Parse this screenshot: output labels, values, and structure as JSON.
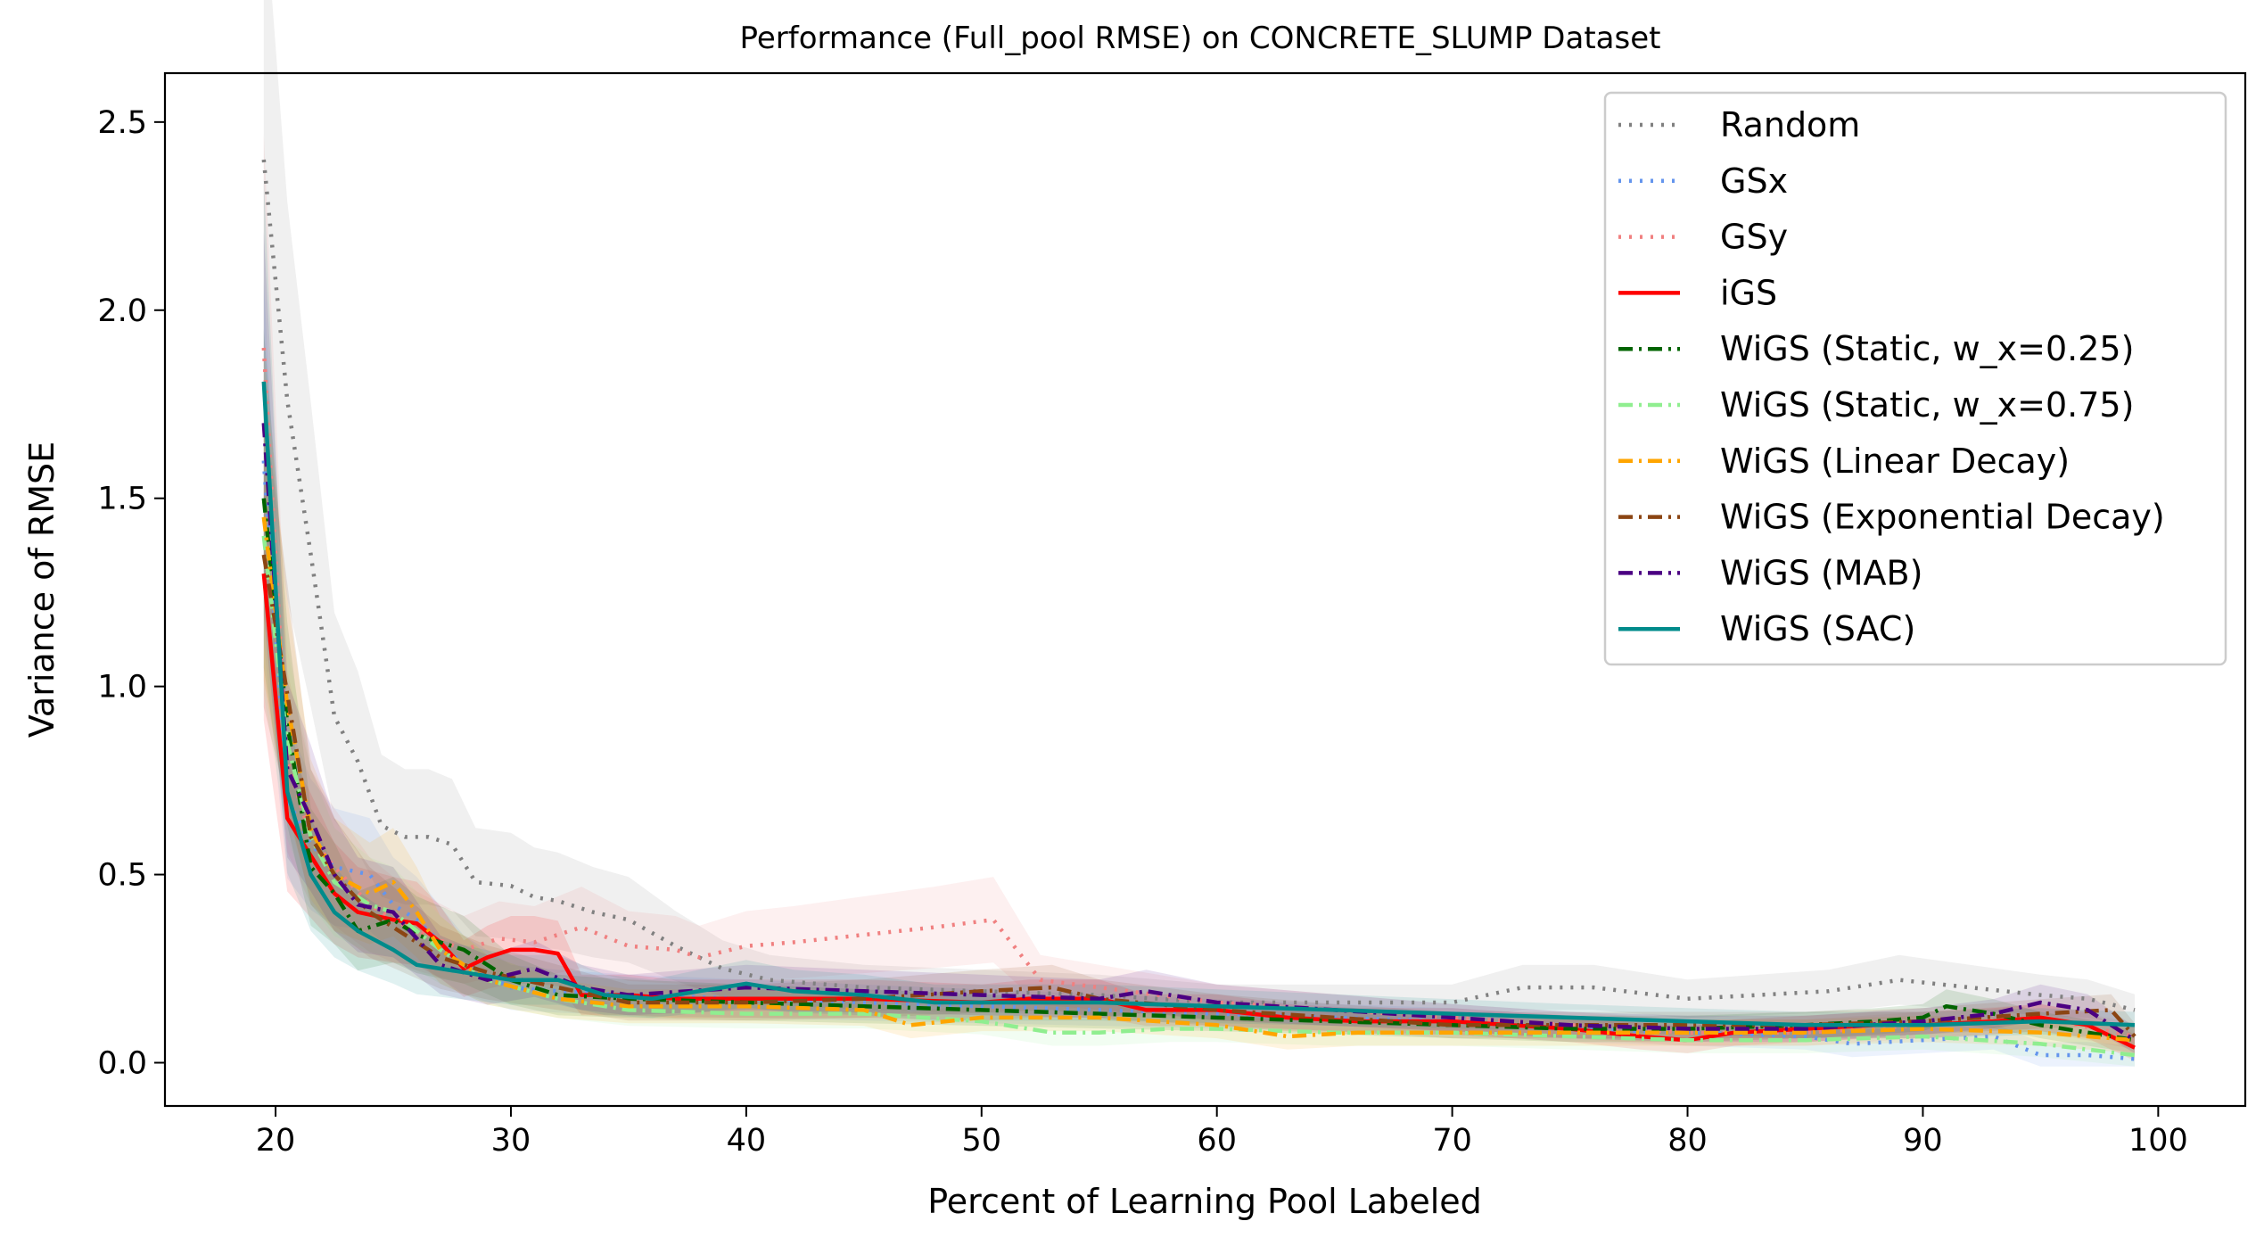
{
  "chart_data": {
    "type": "line",
    "title": "Performance (Full_pool RMSE) on CONCRETE_SLUMP Dataset",
    "xlabel": "Percent of Learning Pool Labeled",
    "ylabel": "Variance of RMSE",
    "xlim": [
      15.3,
      103.7
    ],
    "ylim": [
      -0.115,
      2.63
    ],
    "xticks": [
      20,
      30,
      40,
      50,
      60,
      70,
      80,
      90,
      100
    ],
    "yticks": [
      0.0,
      0.5,
      1.0,
      1.5,
      2.0,
      2.5
    ],
    "xtick_labels": [
      "20",
      "30",
      "40",
      "50",
      "60",
      "70",
      "80",
      "90",
      "100"
    ],
    "ytick_labels": [
      "0.0",
      "0.5",
      "1.0",
      "1.5",
      "2.0",
      "2.5"
    ],
    "grid": false,
    "legend_position": "top-right",
    "series": [
      {
        "name": "Random",
        "color": "#808080",
        "dash": "dotted",
        "band": true,
        "points": [
          [
            19.5,
            2.4
          ],
          [
            20.5,
            1.76
          ],
          [
            21.5,
            1.35
          ],
          [
            22.5,
            0.92
          ],
          [
            23.5,
            0.8
          ],
          [
            24.5,
            0.63
          ],
          [
            25.5,
            0.6
          ],
          [
            26.5,
            0.6
          ],
          [
            27.5,
            0.58
          ],
          [
            28.5,
            0.48
          ],
          [
            30,
            0.47
          ],
          [
            31,
            0.44
          ],
          [
            32,
            0.43
          ],
          [
            33.5,
            0.4
          ],
          [
            35,
            0.38
          ],
          [
            37,
            0.31
          ],
          [
            39,
            0.25
          ],
          [
            41,
            0.22
          ],
          [
            45,
            0.2
          ],
          [
            50,
            0.19
          ],
          [
            55,
            0.18
          ],
          [
            60,
            0.16
          ],
          [
            65,
            0.16
          ],
          [
            70,
            0.16
          ],
          [
            73,
            0.2
          ],
          [
            76,
            0.2
          ],
          [
            80,
            0.17
          ],
          [
            83,
            0.18
          ],
          [
            86,
            0.19
          ],
          [
            89,
            0.22
          ],
          [
            92,
            0.2
          ],
          [
            95,
            0.18
          ],
          [
            97,
            0.17
          ],
          [
            99,
            0.14
          ]
        ]
      },
      {
        "name": "GSx",
        "color": "#6495ED",
        "dash": "dotted",
        "band": true,
        "points": [
          [
            19.5,
            1.6
          ],
          [
            20.5,
            0.7
          ],
          [
            21.5,
            0.58
          ],
          [
            22.5,
            0.52
          ],
          [
            24,
            0.5
          ],
          [
            25,
            0.42
          ],
          [
            26,
            0.38
          ],
          [
            28,
            0.26
          ],
          [
            30,
            0.2
          ],
          [
            32,
            0.19
          ],
          [
            35,
            0.18
          ],
          [
            40,
            0.17
          ],
          [
            45,
            0.16
          ],
          [
            50,
            0.15
          ],
          [
            55,
            0.14
          ],
          [
            60,
            0.13
          ],
          [
            65,
            0.12
          ],
          [
            70,
            0.11
          ],
          [
            75,
            0.09
          ],
          [
            80,
            0.08
          ],
          [
            85,
            0.07
          ],
          [
            87,
            0.05
          ],
          [
            90,
            0.06
          ],
          [
            93,
            0.07
          ],
          [
            95,
            0.02
          ],
          [
            97,
            0.02
          ],
          [
            99,
            0.01
          ]
        ]
      },
      {
        "name": "GSy",
        "color": "#F08080",
        "dash": "dotted",
        "band": true,
        "points": [
          [
            19.5,
            1.9
          ],
          [
            20.5,
            0.8
          ],
          [
            21.5,
            0.6
          ],
          [
            22.5,
            0.52
          ],
          [
            24,
            0.42
          ],
          [
            25,
            0.38
          ],
          [
            26,
            0.35
          ],
          [
            28,
            0.3
          ],
          [
            29.5,
            0.33
          ],
          [
            31,
            0.32
          ],
          [
            33,
            0.36
          ],
          [
            35,
            0.31
          ],
          [
            37,
            0.3
          ],
          [
            38,
            0.28
          ],
          [
            40,
            0.31
          ],
          [
            42,
            0.32
          ],
          [
            45,
            0.34
          ],
          [
            48,
            0.36
          ],
          [
            50.5,
            0.38
          ],
          [
            51.5,
            0.3
          ],
          [
            52.5,
            0.22
          ],
          [
            55,
            0.2
          ],
          [
            60,
            0.16
          ],
          [
            65,
            0.14
          ],
          [
            70,
            0.12
          ],
          [
            75,
            0.1
          ],
          [
            80,
            0.08
          ],
          [
            85,
            0.08
          ],
          [
            90,
            0.1
          ],
          [
            95,
            0.12
          ],
          [
            99,
            0.07
          ]
        ]
      },
      {
        "name": "iGS",
        "color": "#FF0000",
        "dash": "solid",
        "band": true,
        "points": [
          [
            19.5,
            1.3
          ],
          [
            20.5,
            0.65
          ],
          [
            21.5,
            0.55
          ],
          [
            22.5,
            0.45
          ],
          [
            23.5,
            0.4
          ],
          [
            25,
            0.38
          ],
          [
            26,
            0.37
          ],
          [
            27,
            0.32
          ],
          [
            28,
            0.25
          ],
          [
            29,
            0.28
          ],
          [
            30,
            0.3
          ],
          [
            31,
            0.3
          ],
          [
            32,
            0.29
          ],
          [
            33,
            0.18
          ],
          [
            35,
            0.18
          ],
          [
            37,
            0.17
          ],
          [
            40,
            0.17
          ],
          [
            45,
            0.17
          ],
          [
            50,
            0.16
          ],
          [
            52,
            0.17
          ],
          [
            55,
            0.17
          ],
          [
            57,
            0.14
          ],
          [
            60,
            0.14
          ],
          [
            63,
            0.12
          ],
          [
            66,
            0.11
          ],
          [
            70,
            0.11
          ],
          [
            75,
            0.09
          ],
          [
            78,
            0.07
          ],
          [
            80,
            0.06
          ],
          [
            82,
            0.08
          ],
          [
            85,
            0.09
          ],
          [
            88,
            0.1
          ],
          [
            90,
            0.1
          ],
          [
            93,
            0.11
          ],
          [
            95,
            0.12
          ],
          [
            97,
            0.1
          ],
          [
            99,
            0.04
          ]
        ]
      },
      {
        "name": "WiGS (Static, w_x=0.25)",
        "color": "#006400",
        "dash": "dashdot",
        "band": true,
        "points": [
          [
            19.5,
            1.5
          ],
          [
            20.5,
            0.9
          ],
          [
            21.5,
            0.52
          ],
          [
            22.5,
            0.45
          ],
          [
            23.5,
            0.35
          ],
          [
            25,
            0.38
          ],
          [
            26,
            0.34
          ],
          [
            27,
            0.32
          ],
          [
            28,
            0.3
          ],
          [
            30,
            0.22
          ],
          [
            32,
            0.18
          ],
          [
            35,
            0.17
          ],
          [
            40,
            0.16
          ],
          [
            45,
            0.15
          ],
          [
            50,
            0.14
          ],
          [
            55,
            0.13
          ],
          [
            60,
            0.12
          ],
          [
            65,
            0.11
          ],
          [
            70,
            0.1
          ],
          [
            75,
            0.09
          ],
          [
            80,
            0.09
          ],
          [
            85,
            0.1
          ],
          [
            88,
            0.11
          ],
          [
            90,
            0.12
          ],
          [
            91,
            0.15
          ],
          [
            93,
            0.13
          ],
          [
            95,
            0.1
          ],
          [
            97,
            0.08
          ],
          [
            99,
            0.06
          ]
        ]
      },
      {
        "name": "WiGS (Static, w_x=0.75)",
        "color": "#90EE90",
        "dash": "dashdot",
        "band": true,
        "points": [
          [
            19.5,
            1.4
          ],
          [
            20.5,
            0.85
          ],
          [
            21.5,
            0.6
          ],
          [
            22.5,
            0.48
          ],
          [
            24,
            0.42
          ],
          [
            25,
            0.4
          ],
          [
            27,
            0.3
          ],
          [
            29,
            0.22
          ],
          [
            32,
            0.17
          ],
          [
            35,
            0.14
          ],
          [
            40,
            0.13
          ],
          [
            45,
            0.13
          ],
          [
            50,
            0.11
          ],
          [
            53,
            0.08
          ],
          [
            55,
            0.08
          ],
          [
            58,
            0.09
          ],
          [
            60,
            0.09
          ],
          [
            65,
            0.08
          ],
          [
            70,
            0.08
          ],
          [
            75,
            0.07
          ],
          [
            80,
            0.06
          ],
          [
            85,
            0.06
          ],
          [
            90,
            0.07
          ],
          [
            95,
            0.05
          ],
          [
            99,
            0.02
          ]
        ]
      },
      {
        "name": "WiGS (Linear Decay)",
        "color": "#FFA500",
        "dash": "dashdot",
        "band": true,
        "points": [
          [
            19.5,
            1.45
          ],
          [
            20.5,
            0.95
          ],
          [
            21.5,
            0.62
          ],
          [
            22.5,
            0.5
          ],
          [
            24,
            0.45
          ],
          [
            25,
            0.48
          ],
          [
            26,
            0.4
          ],
          [
            27,
            0.3
          ],
          [
            29,
            0.22
          ],
          [
            32,
            0.17
          ],
          [
            35,
            0.15
          ],
          [
            40,
            0.15
          ],
          [
            45,
            0.14
          ],
          [
            47,
            0.1
          ],
          [
            50,
            0.12
          ],
          [
            55,
            0.12
          ],
          [
            60,
            0.1
          ],
          [
            63,
            0.07
          ],
          [
            66,
            0.08
          ],
          [
            70,
            0.08
          ],
          [
            75,
            0.08
          ],
          [
            80,
            0.08
          ],
          [
            85,
            0.08
          ],
          [
            90,
            0.09
          ],
          [
            95,
            0.08
          ],
          [
            99,
            0.06
          ]
        ]
      },
      {
        "name": "WiGS (Exponential Decay)",
        "color": "#8B4513",
        "dash": "dashdot",
        "band": true,
        "points": [
          [
            19.5,
            1.35
          ],
          [
            20.5,
            0.98
          ],
          [
            21.5,
            0.6
          ],
          [
            22.5,
            0.5
          ],
          [
            24,
            0.4
          ],
          [
            25,
            0.36
          ],
          [
            27,
            0.28
          ],
          [
            29,
            0.24
          ],
          [
            32,
            0.2
          ],
          [
            35,
            0.16
          ],
          [
            40,
            0.16
          ],
          [
            45,
            0.17
          ],
          [
            50,
            0.19
          ],
          [
            53,
            0.2
          ],
          [
            55,
            0.17
          ],
          [
            60,
            0.14
          ],
          [
            65,
            0.12
          ],
          [
            70,
            0.1
          ],
          [
            75,
            0.1
          ],
          [
            80,
            0.1
          ],
          [
            85,
            0.1
          ],
          [
            90,
            0.11
          ],
          [
            95,
            0.13
          ],
          [
            98,
            0.14
          ],
          [
            99,
            0.07
          ]
        ]
      },
      {
        "name": "WiGS (MAB)",
        "color": "#4B0082",
        "dash": "dashdot",
        "band": true,
        "points": [
          [
            19.5,
            1.7
          ],
          [
            20.5,
            0.78
          ],
          [
            21.5,
            0.65
          ],
          [
            22.5,
            0.5
          ],
          [
            23.5,
            0.42
          ],
          [
            25,
            0.4
          ],
          [
            26,
            0.33
          ],
          [
            27,
            0.26
          ],
          [
            29,
            0.22
          ],
          [
            31,
            0.25
          ],
          [
            33,
            0.2
          ],
          [
            35,
            0.18
          ],
          [
            40,
            0.2
          ],
          [
            45,
            0.19
          ],
          [
            50,
            0.18
          ],
          [
            55,
            0.17
          ],
          [
            57,
            0.19
          ],
          [
            60,
            0.16
          ],
          [
            65,
            0.14
          ],
          [
            70,
            0.12
          ],
          [
            75,
            0.1
          ],
          [
            80,
            0.09
          ],
          [
            85,
            0.09
          ],
          [
            90,
            0.11
          ],
          [
            93,
            0.13
          ],
          [
            95,
            0.16
          ],
          [
            97,
            0.14
          ],
          [
            99,
            0.06
          ]
        ]
      },
      {
        "name": "WiGS (SAC)",
        "color": "#008B8B",
        "dash": "solid",
        "band": true,
        "points": [
          [
            19.5,
            1.81
          ],
          [
            20.5,
            0.72
          ],
          [
            21.5,
            0.5
          ],
          [
            22.5,
            0.4
          ],
          [
            23.5,
            0.35
          ],
          [
            25,
            0.3
          ],
          [
            26,
            0.26
          ],
          [
            28,
            0.24
          ],
          [
            30,
            0.22
          ],
          [
            32,
            0.22
          ],
          [
            34,
            0.18
          ],
          [
            36,
            0.17
          ],
          [
            38,
            0.19
          ],
          [
            40,
            0.21
          ],
          [
            42,
            0.19
          ],
          [
            45,
            0.18
          ],
          [
            48,
            0.16
          ],
          [
            50,
            0.16
          ],
          [
            55,
            0.16
          ],
          [
            60,
            0.15
          ],
          [
            65,
            0.14
          ],
          [
            70,
            0.13
          ],
          [
            75,
            0.12
          ],
          [
            80,
            0.11
          ],
          [
            85,
            0.1
          ],
          [
            90,
            0.1
          ],
          [
            95,
            0.11
          ],
          [
            99,
            0.1
          ]
        ]
      }
    ]
  }
}
